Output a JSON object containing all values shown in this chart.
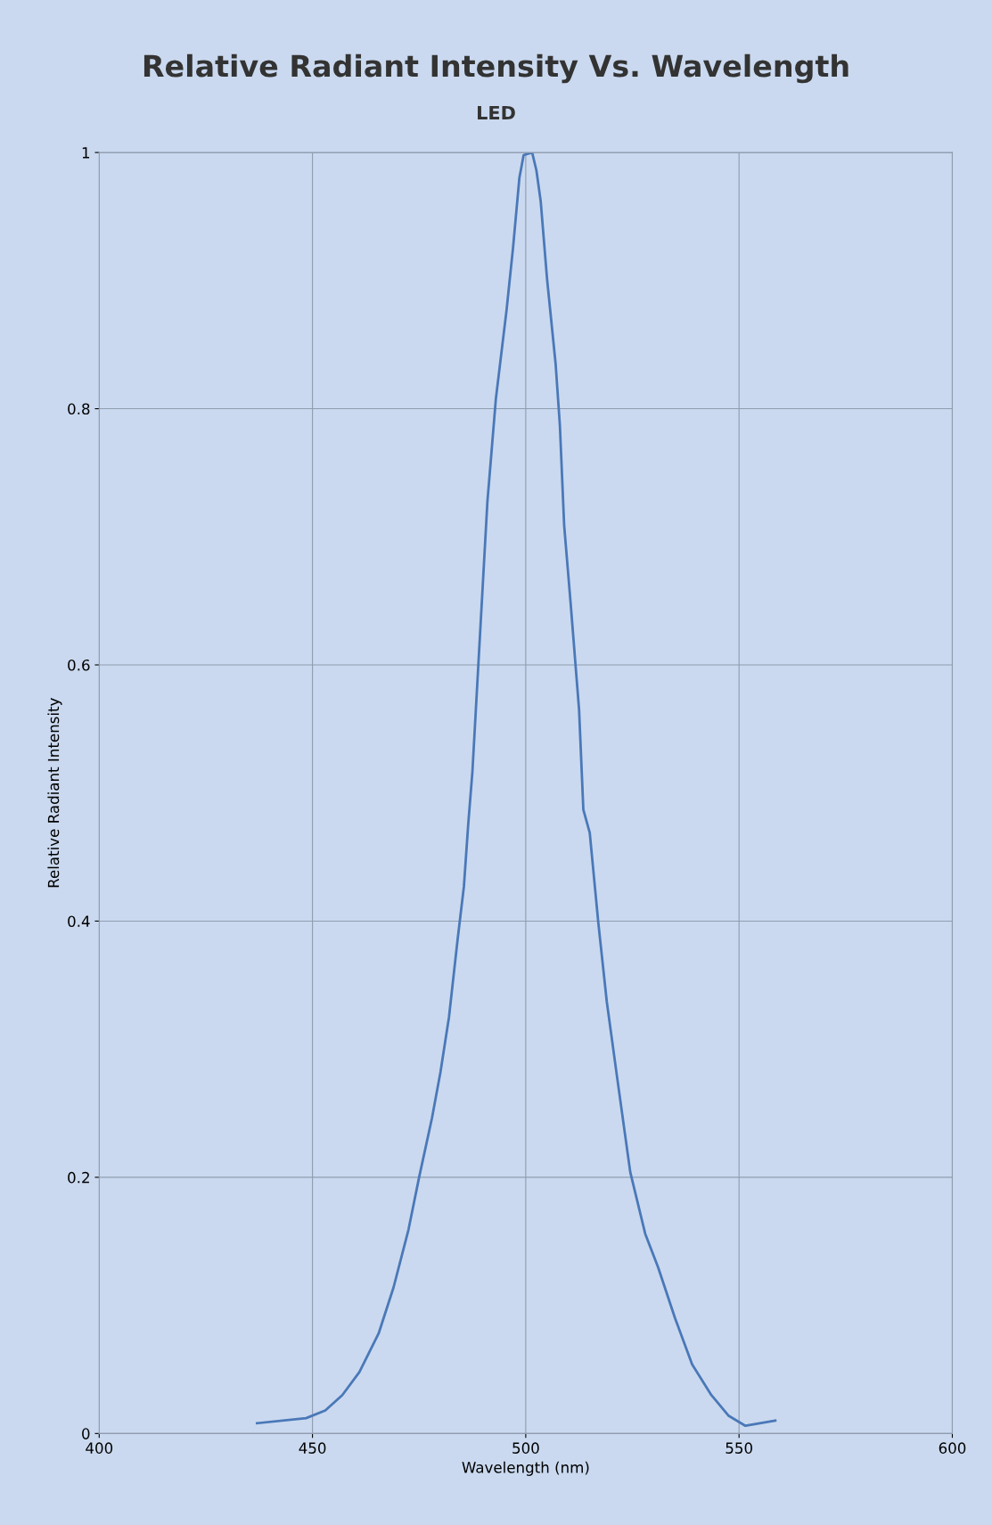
{
  "chart_data": {
    "type": "line",
    "title": "Relative Radiant Intensity Vs. Wavelength",
    "subtitle": "LED",
    "xlabel": "Wavelength (nm)",
    "ylabel": "Relative Radiant Intensity",
    "x": [
      437,
      448.5,
      453,
      457,
      461,
      465.5,
      469,
      472.5,
      475,
      478,
      480,
      482,
      484,
      485.5,
      486.5,
      487.5,
      489,
      491,
      493,
      495.5,
      497,
      498.5,
      499.5,
      501.5,
      502.5,
      503.5,
      505,
      507,
      508,
      509,
      510.5,
      512.5,
      513.5,
      515,
      517,
      519,
      521.5,
      524.5,
      528,
      531,
      535,
      539,
      543.5,
      547.5,
      551.5,
      558.5
    ],
    "series": [
      {
        "color": "#4a78b8",
        "values": [
          0.008,
          0.012,
          0.018,
          0.03,
          0.048,
          0.078,
          0.114,
          0.159,
          0.2,
          0.246,
          0.282,
          0.325,
          0.385,
          0.427,
          0.475,
          0.517,
          0.607,
          0.727,
          0.808,
          0.877,
          0.925,
          0.98,
          0.998,
          1.0,
          0.986,
          0.962,
          0.901,
          0.835,
          0.787,
          0.709,
          0.649,
          0.565,
          0.487,
          0.469,
          0.399,
          0.337,
          0.276,
          0.204,
          0.156,
          0.13,
          0.09,
          0.054,
          0.03,
          0.014,
          0.006,
          0.01
        ]
      }
    ],
    "xlim": [
      400,
      600
    ],
    "xticks": [
      400,
      450,
      500,
      550,
      600
    ],
    "ylim": [
      0,
      1
    ],
    "yticks": [
      0,
      0.2,
      0.4,
      0.6,
      0.8,
      1
    ],
    "grid": true,
    "legend": false,
    "marker": "none",
    "line_style": "solid"
  }
}
